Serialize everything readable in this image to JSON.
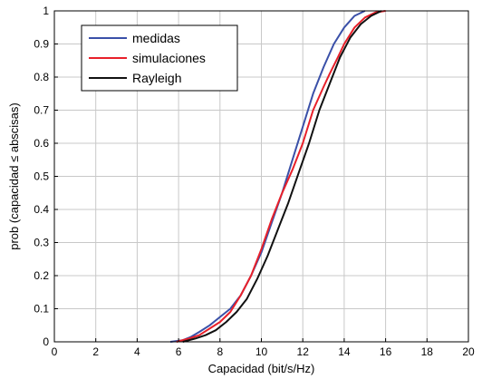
{
  "chart_data": {
    "type": "line",
    "title": "",
    "xlabel": "Capacidad (bit/s/Hz)",
    "ylabel": "prob (capacidad ≤ abscisas)",
    "xlim": [
      0,
      20
    ],
    "ylim": [
      0,
      1
    ],
    "xticks": [
      "0",
      "2",
      "4",
      "6",
      "8",
      "10",
      "12",
      "14",
      "16",
      "18",
      "20"
    ],
    "yticks": [
      "0",
      "0.1",
      "0.2",
      "0.3",
      "0.4",
      "0.5",
      "0.6",
      "0.7",
      "0.8",
      "0.9",
      "1"
    ],
    "grid": true,
    "legend_position": "top-left",
    "series": [
      {
        "name": "medidas",
        "color": "#3a50a8",
        "points": [
          [
            5.6,
            0
          ],
          [
            6.2,
            0.005
          ],
          [
            6.6,
            0.015
          ],
          [
            7,
            0.03
          ],
          [
            7.5,
            0.05
          ],
          [
            8,
            0.075
          ],
          [
            8.5,
            0.1
          ],
          [
            9,
            0.14
          ],
          [
            9.5,
            0.2
          ],
          [
            10,
            0.27
          ],
          [
            10.5,
            0.36
          ],
          [
            11,
            0.45
          ],
          [
            11.5,
            0.55
          ],
          [
            12,
            0.65
          ],
          [
            12.5,
            0.75
          ],
          [
            13,
            0.83
          ],
          [
            13.5,
            0.9
          ],
          [
            14,
            0.95
          ],
          [
            14.5,
            0.985
          ],
          [
            15,
            1
          ]
        ]
      },
      {
        "name": "simulaciones",
        "color": "#e8202a",
        "points": [
          [
            5.9,
            0
          ],
          [
            6.5,
            0.01
          ],
          [
            7,
            0.02
          ],
          [
            7.5,
            0.04
          ],
          [
            8,
            0.06
          ],
          [
            8.5,
            0.09
          ],
          [
            9,
            0.14
          ],
          [
            9.5,
            0.2
          ],
          [
            10,
            0.28
          ],
          [
            10.5,
            0.37
          ],
          [
            11,
            0.45
          ],
          [
            11.5,
            0.52
          ],
          [
            12,
            0.6
          ],
          [
            12.5,
            0.7
          ],
          [
            13,
            0.77
          ],
          [
            13.3,
            0.81
          ],
          [
            13.7,
            0.86
          ],
          [
            14,
            0.9
          ],
          [
            14.5,
            0.95
          ],
          [
            15,
            0.98
          ],
          [
            15.5,
            0.995
          ],
          [
            16,
            1
          ]
        ]
      },
      {
        "name": "Rayleigh",
        "color": "#111111",
        "points": [
          [
            6.2,
            0
          ],
          [
            6.8,
            0.01
          ],
          [
            7.3,
            0.02
          ],
          [
            7.8,
            0.035
          ],
          [
            8.3,
            0.06
          ],
          [
            8.8,
            0.09
          ],
          [
            9.3,
            0.13
          ],
          [
            9.8,
            0.19
          ],
          [
            10.3,
            0.26
          ],
          [
            10.8,
            0.34
          ],
          [
            11.3,
            0.42
          ],
          [
            11.8,
            0.51
          ],
          [
            12.3,
            0.6
          ],
          [
            12.8,
            0.7
          ],
          [
            13.3,
            0.78
          ],
          [
            13.8,
            0.86
          ],
          [
            14.3,
            0.92
          ],
          [
            14.8,
            0.96
          ],
          [
            15.3,
            0.985
          ],
          [
            15.8,
            1
          ]
        ]
      }
    ]
  }
}
